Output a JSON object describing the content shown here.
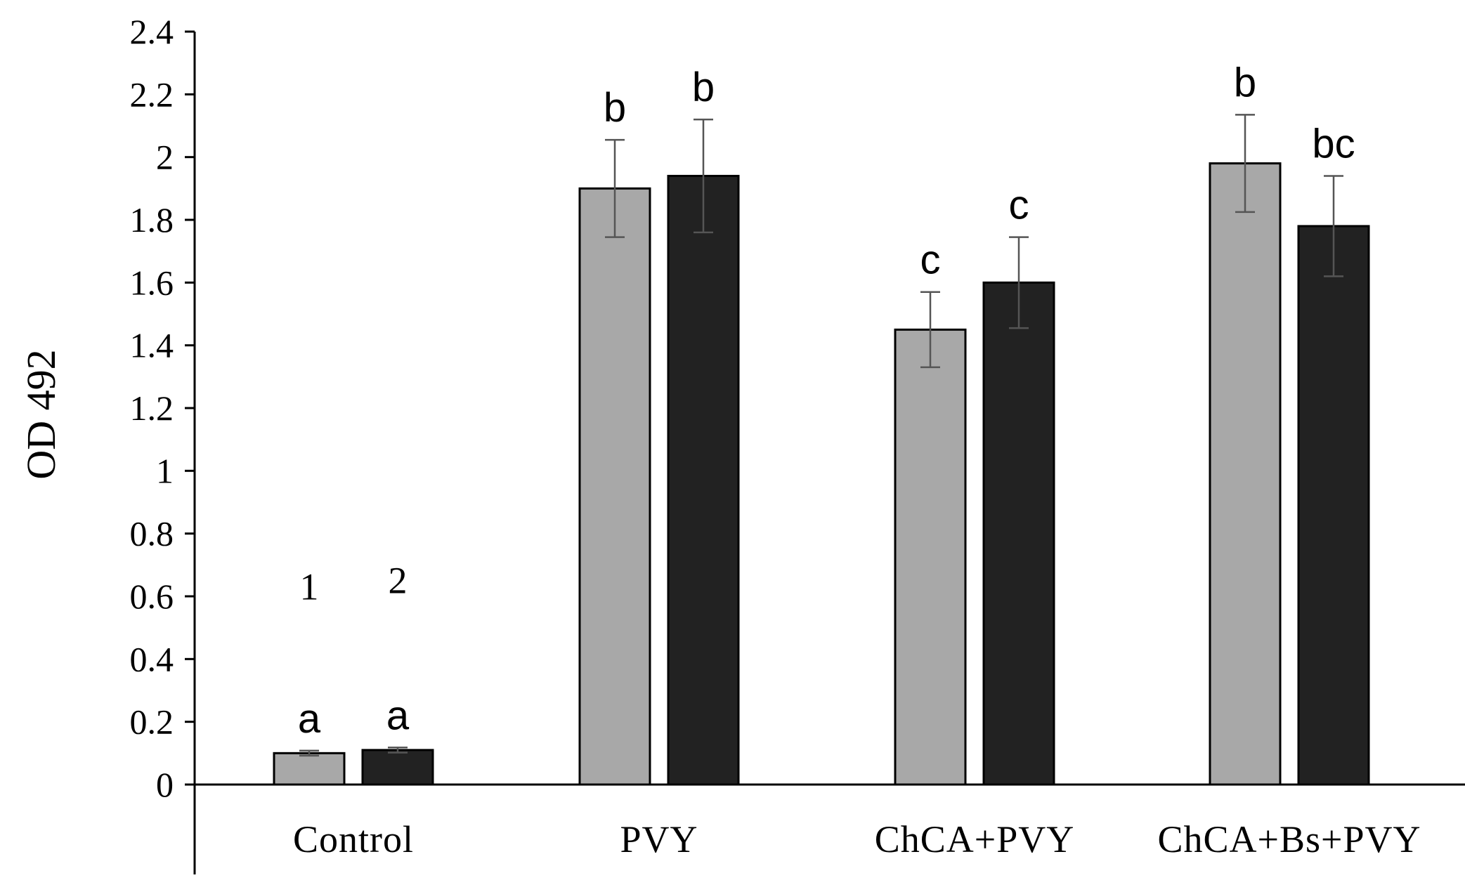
{
  "chart_data": {
    "type": "bar",
    "title": "",
    "xlabel": "",
    "ylabel": "OD 492",
    "ylim": [
      0,
      2.4
    ],
    "yticks": [
      0,
      0.2,
      0.4,
      0.6,
      0.8,
      1,
      1.2,
      1.4,
      1.6,
      1.8,
      2,
      2.2,
      2.4
    ],
    "ytick_labels": [
      "0",
      "0.2",
      "0.4",
      "0.6",
      "0.8",
      "1",
      "1.2",
      "1.4",
      "1.6",
      "1.8",
      "2",
      "2.2",
      "2.4"
    ],
    "grid": false,
    "categories": [
      "Control",
      "PVY",
      "ChCA+PVY",
      "ChCA+Bs+PVY"
    ],
    "series": [
      {
        "name": "1",
        "color": "#a8a8a8",
        "values": [
          0.1,
          1.9,
          1.45,
          1.98
        ],
        "errors": [
          0.008,
          0.155,
          0.12,
          0.155
        ],
        "labels": [
          "a",
          "b",
          "c",
          "b"
        ]
      },
      {
        "name": "2",
        "color": "#222222",
        "values": [
          0.11,
          1.94,
          1.6,
          1.78
        ],
        "errors": [
          0.008,
          0.18,
          0.145,
          0.16
        ],
        "labels": [
          "a",
          "b",
          "c",
          "bc"
        ]
      }
    ],
    "series_annotations": [
      {
        "text": "1",
        "series": 0,
        "category": 0,
        "y": 0.63
      },
      {
        "text": "2",
        "series": 1,
        "category": 0,
        "y": 0.65
      }
    ]
  }
}
